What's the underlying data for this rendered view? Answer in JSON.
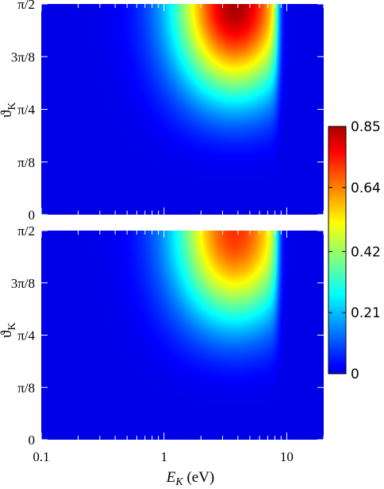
{
  "chart_data": [
    {
      "type": "heatmap",
      "panel": "top",
      "x_scale": "log",
      "xlim": [
        0.1,
        20
      ],
      "ylim": [
        0,
        1.5708
      ],
      "x_ticks": [
        0.1,
        1,
        10
      ],
      "x_tick_labels": [],
      "y_ticks": [
        0,
        0.3927,
        0.7854,
        1.1781,
        1.5708
      ],
      "y_tick_labels": [
        "0",
        "π/8",
        "π/4",
        "3π/8",
        "π/2"
      ],
      "ylabel": "ϑK",
      "xlabel": "",
      "peak": {
        "x": 3.8,
        "y": 1.5708,
        "value": 0.85
      },
      "cutoff_x": 8.5,
      "spread": {
        "x_width": 0.62,
        "y_decay": 0.5
      }
    },
    {
      "type": "heatmap",
      "panel": "bottom",
      "x_scale": "log",
      "xlim": [
        0.1,
        20
      ],
      "ylim": [
        0,
        1.5708
      ],
      "x_ticks": [
        0.1,
        1,
        10
      ],
      "x_tick_labels": [
        "0.1",
        "1",
        "10"
      ],
      "y_ticks": [
        0,
        0.3927,
        0.7854,
        1.1781,
        1.5708
      ],
      "y_tick_labels": [
        "0",
        "π/8",
        "π/4",
        "3π/8",
        "π/2"
      ],
      "ylabel": "ϑK",
      "xlabel": "EK (eV)",
      "peak": {
        "x": 3.8,
        "y": 1.5708,
        "value": 0.72
      },
      "cutoff_x": 8.5,
      "spread": {
        "x_width": 0.62,
        "y_decay": 0.5
      }
    }
  ],
  "colorbar": {
    "min": 0,
    "max": 0.85,
    "tick_values": [
      0,
      0.21,
      0.42,
      0.64,
      0.85
    ],
    "tick_labels": [
      "0",
      "0.21",
      "0.42",
      "0.64",
      "0.85"
    ],
    "colormap": "jet"
  },
  "labels": {
    "ylabel_top_main": "ϑ",
    "ylabel_top_sub": "K",
    "ylabel_bottom_main": "ϑ",
    "ylabel_bottom_sub": "K",
    "xlabel_main": "E",
    "xlabel_sub": "K",
    "xlabel_unit": " (eV)"
  }
}
